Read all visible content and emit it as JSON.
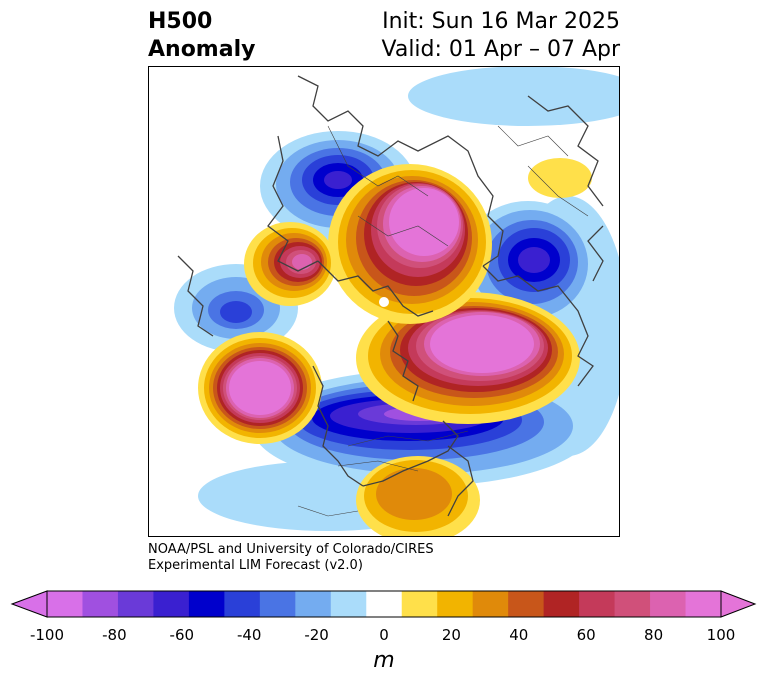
{
  "title": {
    "variable": "H500",
    "field": "Anomaly",
    "init": "Init: Sun 16 Mar 2025",
    "valid": "Valid: 01 Apr – 07 Apr"
  },
  "credit": {
    "line1": "NOAA/PSL and University of Colorado/CIRES",
    "line2": "Experimental LIM Forecast (v2.0)"
  },
  "colorbar": {
    "ticks": [
      "-100",
      "-80",
      "-60",
      "-40",
      "-20",
      "0",
      "20",
      "40",
      "60",
      "80",
      "100"
    ],
    "unit": "m",
    "levels": [
      -100,
      -90,
      -80,
      -70,
      -60,
      -50,
      -40,
      -30,
      -20,
      -10,
      10,
      20,
      30,
      40,
      50,
      60,
      70,
      80,
      90,
      100
    ],
    "colors": [
      "#d870e8",
      "#a050e0",
      "#6a3ad8",
      "#3a20d0",
      "#0000cc",
      "#2a40d8",
      "#4a74e4",
      "#74acf0",
      "#aadcfa",
      "#ffffff",
      "#ffe04a",
      "#f2b400",
      "#e08a0a",
      "#c8561a",
      "#b02424",
      "#c43a5a",
      "#d0507a",
      "#dc62b0",
      "#e474d8"
    ],
    "under_color": "#d870e8",
    "over_color": "#e474d8"
  },
  "map": {
    "projection": "north-polar-stereographic",
    "anomaly_features": [
      {
        "name": "negative-anomaly-siberia",
        "sign": "negative",
        "peak_m": -70
      },
      {
        "name": "negative-anomaly-east-asia",
        "sign": "negative",
        "peak_m": -45
      },
      {
        "name": "negative-anomaly-western-europe",
        "sign": "negative",
        "peak_m": -70
      },
      {
        "name": "negative-anomaly-canada-north-atlantic",
        "sign": "negative",
        "peak_m": -100
      },
      {
        "name": "positive-anomaly-central-asia",
        "sign": "positive",
        "peak_m": 100
      },
      {
        "name": "positive-anomaly-east-siberia-pacific",
        "sign": "positive",
        "peak_m": 80
      },
      {
        "name": "positive-anomaly-greenland",
        "sign": "positive",
        "peak_m": 100
      },
      {
        "name": "positive-anomaly-north-pacific",
        "sign": "positive",
        "peak_m": 100
      },
      {
        "name": "positive-anomaly-caribbean",
        "sign": "positive",
        "peak_m": 40
      },
      {
        "name": "positive-anomaly-north-africa",
        "sign": "positive",
        "peak_m": 20
      }
    ]
  }
}
